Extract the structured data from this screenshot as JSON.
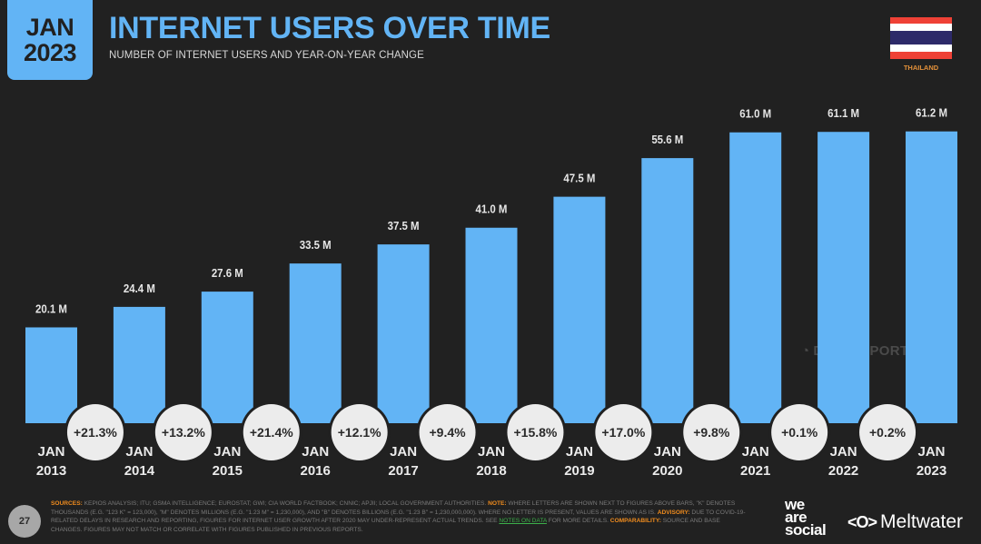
{
  "header": {
    "date_month": "JAN",
    "date_year": "2023",
    "title": "INTERNET USERS OVER TIME",
    "subtitle": "NUMBER OF INTERNET USERS AND YEAR-ON-YEAR CHANGE",
    "country": "THAILAND",
    "flag_colors": [
      "#ef4136",
      "#ffffff",
      "#2d2a69",
      "#ffffff",
      "#ef4136"
    ]
  },
  "colors": {
    "bar": "#62b4f5",
    "background": "#212121",
    "bubble": "#ececec",
    "accent_orange": "#f08c1e",
    "link_green": "#3cb04a"
  },
  "chart_data": {
    "type": "bar",
    "title": "INTERNET USERS OVER TIME",
    "subtitle": "NUMBER OF INTERNET USERS AND YEAR-ON-YEAR CHANGE",
    "xlabel": "",
    "ylabel": "",
    "unit": "M",
    "ylim": [
      0,
      65
    ],
    "grid": false,
    "categories": [
      [
        "JAN",
        "2013"
      ],
      [
        "JAN",
        "2014"
      ],
      [
        "JAN",
        "2015"
      ],
      [
        "JAN",
        "2016"
      ],
      [
        "JAN",
        "2017"
      ],
      [
        "JAN",
        "2018"
      ],
      [
        "JAN",
        "2019"
      ],
      [
        "JAN",
        "2020"
      ],
      [
        "JAN",
        "2021"
      ],
      [
        "JAN",
        "2022"
      ],
      [
        "JAN",
        "2023"
      ]
    ],
    "values": [
      20.1,
      24.4,
      27.6,
      33.5,
      37.5,
      41.0,
      47.5,
      55.6,
      61.0,
      61.1,
      61.2
    ],
    "value_labels": [
      "20.1 M",
      "24.4 M",
      "27.6 M",
      "33.5 M",
      "37.5 M",
      "41.0 M",
      "47.5 M",
      "55.6 M",
      "61.0 M",
      "61.1 M",
      "61.2 M"
    ],
    "yoy_change_labels": [
      "+21.3%",
      "+13.2%",
      "+21.4%",
      "+12.1%",
      "+9.4%",
      "+15.8%",
      "+17.0%",
      "+9.8%",
      "+0.1%",
      "+0.2%"
    ]
  },
  "watermark": "DATAREPORTAL",
  "footer": {
    "page_number": "27",
    "sources_label": "SOURCES:",
    "sources_text": " KEPIOS ANALYSIS; ITU; GSMA INTELLIGENCE; EUROSTAT; GWI; CIA WORLD FACTBOOK; CNNIC; APJII; LOCAL GOVERNMENT AUTHORITIES. ",
    "note_label": "NOTE:",
    "note_text": " WHERE LETTERS ARE SHOWN NEXT TO FIGURES ABOVE BARS, \"K\" DENOTES THOUSANDS (E.G. \"123 K\" = 123,000), \"M\" DENOTES MILLIONS (E.G. \"1.23 M\" = 1,230,000), AND \"B\" DENOTES BILLIONS (E.G. \"1.23 B\" = 1,230,000,000). WHERE NO LETTER IS PRESENT, VALUES ARE SHOWN AS IS. ",
    "advisory_label": "ADVISORY:",
    "advisory_text": " DUE TO COVID-19-RELATED DELAYS IN RESEARCH AND REPORTING, FIGURES FOR INTERNET USER GROWTH AFTER 2020 MAY UNDER-REPRESENT ACTUAL TRENDS. SEE ",
    "notes_link": "NOTES ON DATA",
    "advisory_tail": " FOR MORE DETAILS. ",
    "comparability_label": "COMPARABILITY:",
    "comparability_text": " SOURCE AND BASE CHANGES. FIGURES MAY NOT MATCH OR CORRELATE WITH FIGURES PUBLISHED IN PREVIOUS REPORTS.",
    "brand1_lines": [
      "we",
      "are",
      "social"
    ],
    "brand2_logo": "<O>",
    "brand2_name": "Meltwater"
  }
}
